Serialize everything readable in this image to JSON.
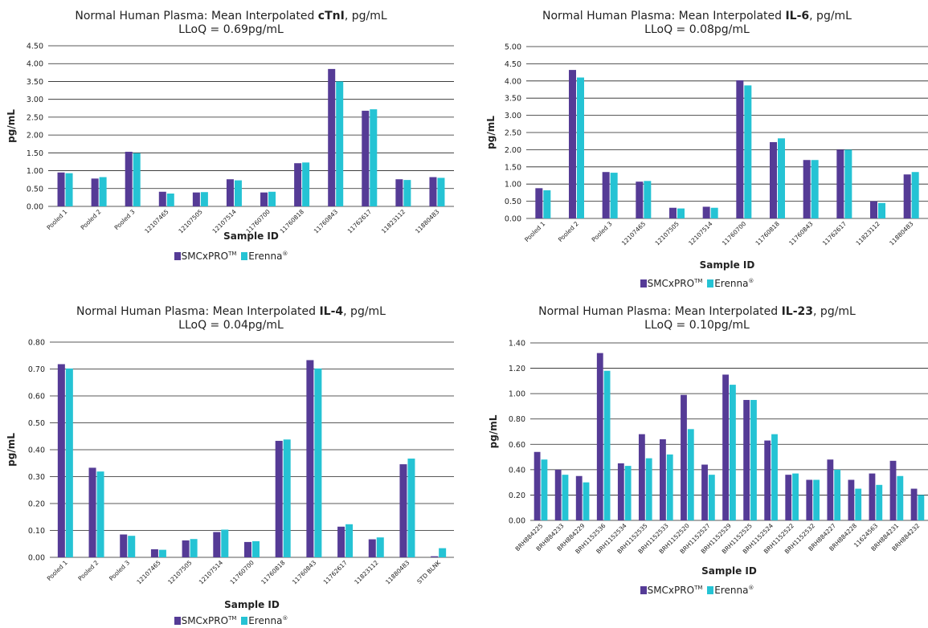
{
  "legend": {
    "series_1": "SMCxPRO",
    "series_1_mark": "TM",
    "series_2": "Erenna",
    "series_2_mark": "®"
  },
  "colors": {
    "series_1": "#553b96",
    "series_2": "#25c3d4",
    "grid": "#222222",
    "text": "#222222"
  },
  "chart_data": [
    {
      "type": "bar",
      "title_prefix": "Normal Human Plasma: Mean Interpolated ",
      "title_bold": "cTnI",
      "title_suffix": ", pg/mL",
      "subtitle": "LLoQ = 0.69pg/mL",
      "xlabel": "Sample ID",
      "ylabel": "pg/mL",
      "ylim": [
        0,
        4.5
      ],
      "ystep": 0.5,
      "grid": true,
      "legend_position": "bottom",
      "categories": [
        "Pooled 1",
        "Pooled 2",
        "Pooled 3",
        "12107465",
        "12107505",
        "12107514",
        "11760700",
        "11760818",
        "11760843",
        "11762617",
        "11823112",
        "11880483"
      ],
      "series": [
        {
          "name": "SMCxPRO",
          "values": [
            0.95,
            0.78,
            1.53,
            0.41,
            0.39,
            0.76,
            0.39,
            1.21,
            3.85,
            2.68,
            0.76,
            0.82
          ]
        },
        {
          "name": "Erenna",
          "values": [
            0.93,
            0.82,
            1.49,
            0.36,
            0.4,
            0.73,
            0.41,
            1.23,
            3.5,
            2.72,
            0.74,
            0.8
          ]
        }
      ]
    },
    {
      "type": "bar",
      "title_prefix": "Normal Human Plasma: Mean Interpolated ",
      "title_bold": "IL-6",
      "title_suffix": ", pg/mL",
      "subtitle": "LLoQ = 0.08pg/mL",
      "xlabel": "Sample ID",
      "ylabel": "pg/mL",
      "ylim": [
        0,
        5.0
      ],
      "ystep": 0.5,
      "grid": true,
      "legend_position": "bottom",
      "categories": [
        "Pooled 1",
        "Pooled 2",
        "Pooled 3",
        "12107465",
        "12107505",
        "12107514",
        "11760700",
        "11760818",
        "11760843",
        "11762617",
        "11823112",
        "11880483"
      ],
      "series": [
        {
          "name": "SMCxPRO",
          "values": [
            0.88,
            4.32,
            1.35,
            1.07,
            0.31,
            0.34,
            4.02,
            2.22,
            1.7,
            2.0,
            0.5,
            1.28
          ]
        },
        {
          "name": "Erenna",
          "values": [
            0.82,
            4.1,
            1.33,
            1.09,
            0.29,
            0.31,
            3.87,
            2.33,
            1.7,
            2.0,
            0.45,
            1.35
          ]
        }
      ]
    },
    {
      "type": "bar",
      "title_prefix": "Normal Human Plasma: Mean Interpolated ",
      "title_bold": "IL-4",
      "title_suffix": ", pg/mL",
      "subtitle": "LLoQ = 0.04pg/mL",
      "xlabel": "Sample ID",
      "ylabel": "pg/mL",
      "ylim": [
        0,
        0.8
      ],
      "ystep": 0.1,
      "grid": true,
      "legend_position": "bottom",
      "categories": [
        "Pooled 1",
        "Pooled 2",
        "Pooled 3",
        "12107465",
        "12107505",
        "12107514",
        "11760700",
        "11760818",
        "11760843",
        "11762617",
        "11823112",
        "11880483",
        "STD BLNK"
      ],
      "series": [
        {
          "name": "SMCxPRO",
          "values": [
            0.718,
            0.333,
            0.085,
            0.03,
            0.063,
            0.094,
            0.057,
            0.433,
            0.733,
            0.114,
            0.067,
            0.346,
            0.004
          ]
        },
        {
          "name": "Erenna",
          "values": [
            0.702,
            0.319,
            0.08,
            0.028,
            0.068,
            0.103,
            0.06,
            0.438,
            0.702,
            0.123,
            0.074,
            0.367,
            0.034
          ]
        }
      ]
    },
    {
      "type": "bar",
      "title_prefix": "Normal Human Plasma: Mean Interpolated ",
      "title_bold": "IL-23",
      "title_suffix": ", pg/mL",
      "subtitle": "LLoQ = 0.10pg/mL",
      "xlabel": "Sample ID",
      "ylabel": "pg/mL",
      "ylim": [
        0,
        1.4
      ],
      "ystep": 0.2,
      "grid": true,
      "legend_position": "bottom",
      "categories": [
        "BRH884225",
        "BRH884233",
        "BRH884229",
        "BRH1152536",
        "BRH1152534",
        "BRH1152535",
        "BRH1152533",
        "BRH1152520",
        "BRH1152527",
        "BRH1152529",
        "BRH1152525",
        "BRH1152524",
        "BRH1152522",
        "BRH1152532",
        "BRH884227",
        "BRH884228",
        "11624563",
        "BRH884231",
        "BRH884232"
      ],
      "series": [
        {
          "name": "SMCxPRO",
          "values": [
            0.54,
            0.4,
            0.35,
            1.32,
            0.45,
            0.68,
            0.64,
            0.99,
            0.44,
            1.15,
            0.95,
            0.63,
            0.36,
            0.32,
            0.48,
            0.32,
            0.37,
            0.47,
            0.25
          ]
        },
        {
          "name": "Erenna",
          "values": [
            0.48,
            0.36,
            0.3,
            1.18,
            0.43,
            0.49,
            0.52,
            0.72,
            0.36,
            1.07,
            0.95,
            0.68,
            0.37,
            0.32,
            0.4,
            0.25,
            0.28,
            0.35,
            0.2
          ]
        }
      ]
    }
  ]
}
